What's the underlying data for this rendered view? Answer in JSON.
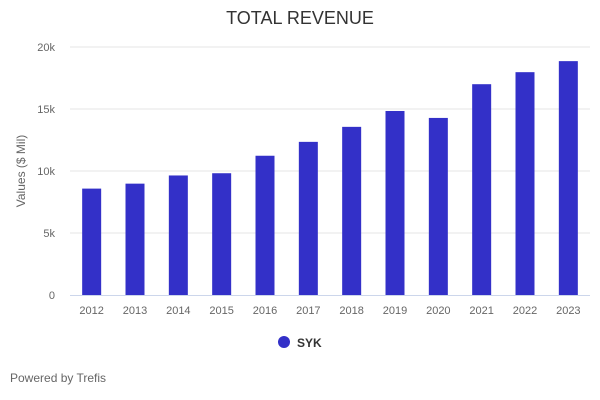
{
  "chart_data": {
    "type": "bar",
    "title": "TOTAL REVENUE",
    "xlabel": "",
    "ylabel": "Values ($ Mil)",
    "categories": [
      "2012",
      "2013",
      "2014",
      "2015",
      "2016",
      "2017",
      "2018",
      "2019",
      "2020",
      "2021",
      "2022",
      "2023"
    ],
    "series": [
      {
        "name": "SYK",
        "color": "#3330c8",
        "values": [
          8580,
          8980,
          9640,
          9820,
          11230,
          12350,
          13560,
          14840,
          14280,
          17000,
          17970,
          18860
        ]
      }
    ],
    "ylim": [
      0,
      20000
    ],
    "yticks": [
      0,
      5000,
      10000,
      15000,
      20000
    ],
    "ytick_labels": [
      "0",
      "5k",
      "10k",
      "15k",
      "20k"
    ],
    "grid": true,
    "legend": "bottom-center"
  },
  "footer": "Powered by Trefis"
}
